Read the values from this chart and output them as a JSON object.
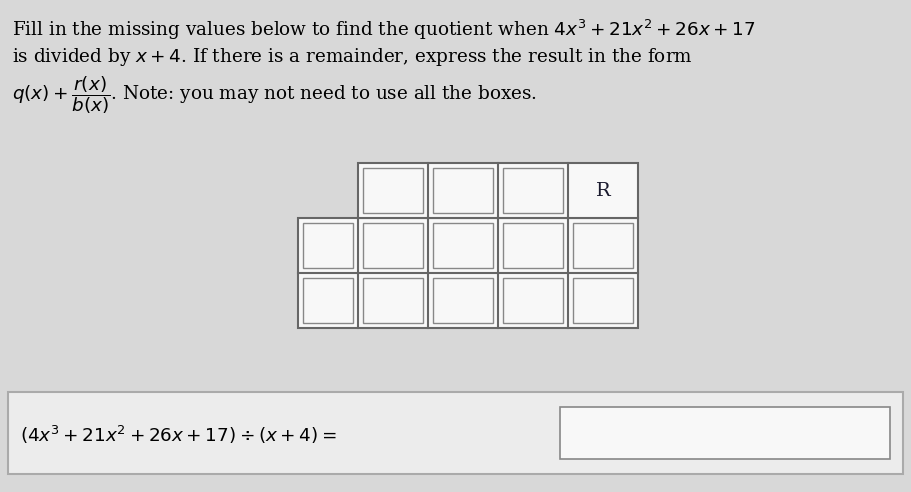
{
  "bg_color": "#d8d8d8",
  "text_bg_color": "#f0f0f0",
  "box_color": "#f8f8f8",
  "box_edge_color": "#888888",
  "line1": "Fill in the missing values below to find the quotient when $4x^3 + 21x^2 + 26x + 17$",
  "line2": "is divided by $x + 4$. If there is a remainder, express the result in the form",
  "line3": "$q(x) + \\dfrac{r(x)}{b(x)}$. Note: you may not need to use all the boxes.",
  "bottom_text": "$(4x^3 + 21x^2 + 26x + 17) \\div (x + 4) = $",
  "R_label": "R"
}
